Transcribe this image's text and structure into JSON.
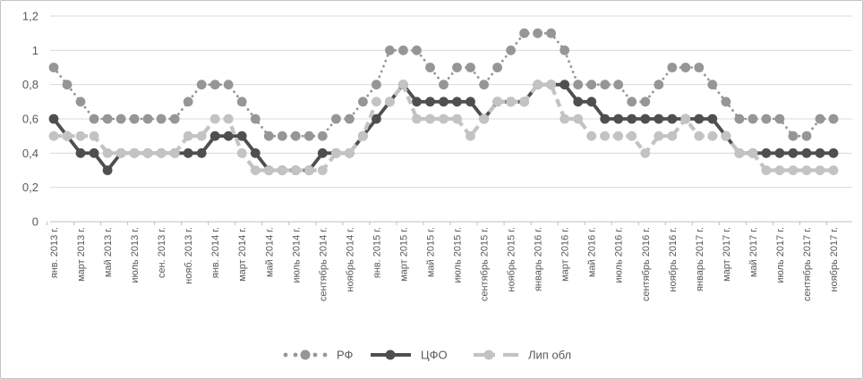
{
  "chart_data": {
    "type": "line",
    "title": "",
    "ylim": [
      0,
      1.2
    ],
    "grid": true,
    "legend_position": "bottom",
    "y_tick_labels": [
      "0",
      "0,2",
      "0,4",
      "0,6",
      "0,8",
      "1",
      "1,2"
    ],
    "y_tick_values": [
      0,
      0.2,
      0.4,
      0.6,
      0.8,
      1.0,
      1.2
    ],
    "x_tick_labels": [
      "янв. 2013 г.",
      "март 2013 г.",
      "май 2013 г.",
      "июль 2013 г.",
      "сен. 2013 г.",
      "нояб. 2013 г.",
      "янв. 2014 г.",
      "март 2014 г.",
      "май 2014 г.",
      "июль 2014 г.",
      "сентябрь 2014 г.",
      "ноябрь 2014 г.",
      "янв. 2015 г.",
      "март 2015 г.",
      "май 2015 г.",
      "июль 2015 г.",
      "сентябрь 2015 г.",
      "ноябрь 2015 г.",
      "январь 2016 г.",
      "март 2016 г.",
      "май 2016 г.",
      "июль 2016 г.",
      "сентябрь 2016 г.",
      "ноябрь 2016 г.",
      "январь 2017 г.",
      "март 2017 г.",
      "май 2017 г.",
      "июль 2017 г.",
      "сентябрь 2017 г.",
      "ноябрь 2017 г."
    ],
    "months_total": 59,
    "colors": {
      "rf": "#969696",
      "cfo": "#4f4f4f",
      "lip": "#c3c3c3",
      "grid": "#d9d9d9",
      "axis": "#bfbfbf",
      "text": "#595959"
    },
    "series": [
      {
        "name": "РФ",
        "style": "dotted",
        "color": "#969696",
        "values": [
          0.9,
          0.8,
          0.7,
          0.6,
          0.6,
          0.6,
          0.6,
          0.6,
          0.6,
          0.6,
          0.7,
          0.8,
          0.8,
          0.8,
          0.7,
          0.6,
          0.5,
          0.5,
          0.5,
          0.5,
          0.5,
          0.6,
          0.6,
          0.7,
          0.8,
          1.0,
          1.0,
          1.0,
          0.9,
          0.8,
          0.9,
          0.9,
          0.8,
          0.9,
          1.0,
          1.1,
          1.1,
          1.1,
          1.0,
          0.8,
          0.8,
          0.8,
          0.8,
          0.7,
          0.7,
          0.8,
          0.9,
          0.9,
          0.9,
          0.8,
          0.7,
          0.6,
          0.6,
          0.6,
          0.6,
          0.5,
          0.5,
          0.6,
          0.6
        ]
      },
      {
        "name": "ЦФО",
        "style": "solid",
        "color": "#4f4f4f",
        "values": [
          0.6,
          0.5,
          0.4,
          0.4,
          0.3,
          0.4,
          0.4,
          0.4,
          0.4,
          0.4,
          0.4,
          0.4,
          0.5,
          0.5,
          0.5,
          0.4,
          0.3,
          0.3,
          0.3,
          0.3,
          0.4,
          0.4,
          0.4,
          0.5,
          0.6,
          0.7,
          0.8,
          0.7,
          0.7,
          0.7,
          0.7,
          0.7,
          0.6,
          0.7,
          0.7,
          0.7,
          0.8,
          0.8,
          0.8,
          0.7,
          0.7,
          0.6,
          0.6,
          0.6,
          0.6,
          0.6,
          0.6,
          0.6,
          0.6,
          0.6,
          0.5,
          0.4,
          0.4,
          0.4,
          0.4,
          0.4,
          0.4,
          0.4,
          0.4
        ]
      },
      {
        "name": "Лип обл",
        "style": "dashed",
        "color": "#c3c3c3",
        "values": [
          0.5,
          0.5,
          0.5,
          0.5,
          0.4,
          0.4,
          0.4,
          0.4,
          0.4,
          0.4,
          0.5,
          0.5,
          0.6,
          0.6,
          0.4,
          0.3,
          0.3,
          0.3,
          0.3,
          0.3,
          0.3,
          0.4,
          0.4,
          0.5,
          0.7,
          0.7,
          0.8,
          0.6,
          0.6,
          0.6,
          0.6,
          0.5,
          0.6,
          0.7,
          0.7,
          0.7,
          0.8,
          0.8,
          0.6,
          0.6,
          0.5,
          0.5,
          0.5,
          0.5,
          0.4,
          0.5,
          0.5,
          0.6,
          0.5,
          0.5,
          0.5,
          0.4,
          0.4,
          0.3,
          0.3,
          0.3,
          0.3,
          0.3,
          0.3
        ]
      }
    ]
  }
}
